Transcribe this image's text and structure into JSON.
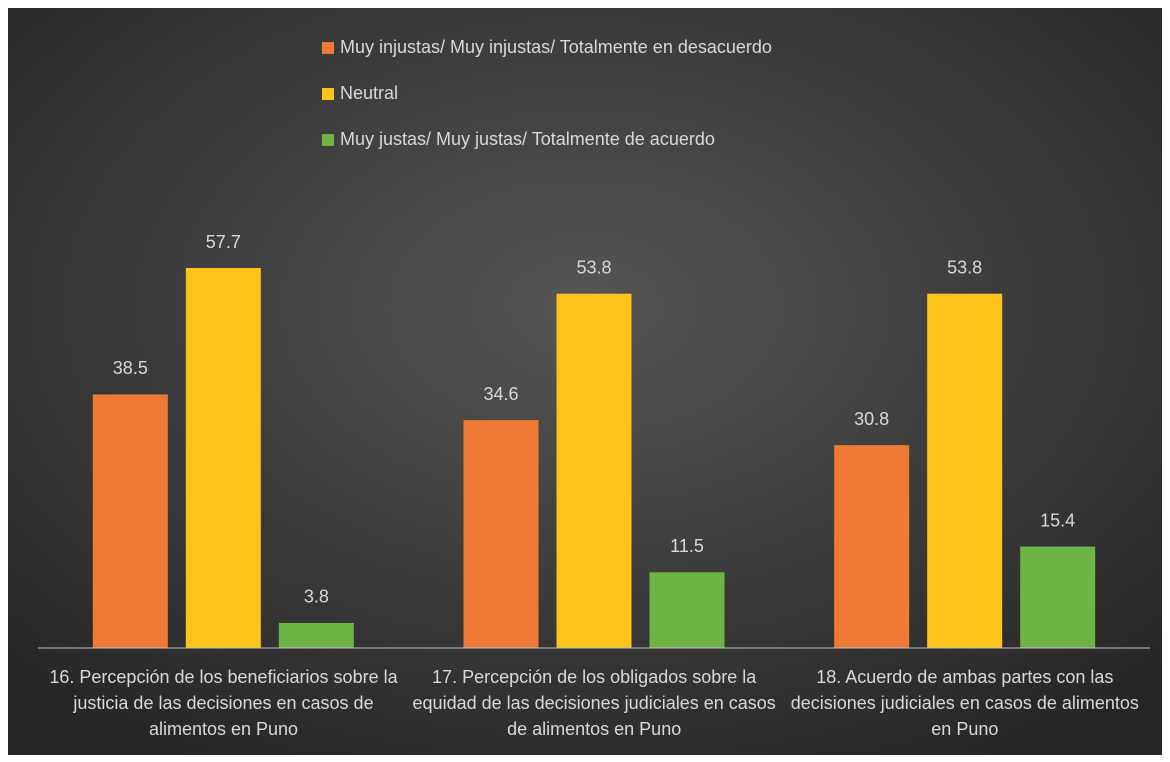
{
  "chart_data": {
    "type": "bar",
    "categories": [
      "16. Percepción de los beneficiarios sobre la justicia de las decisiones en casos de alimentos en Puno",
      "17. Percepción de los obligados sobre la equidad de las decisiones judiciales en casos de alimentos en Puno",
      "18. Acuerdo de ambas partes con las decisiones judiciales en casos de alimentos en Puno"
    ],
    "series": [
      {
        "name": "Muy injustas/ Muy injustas/ Totalmente en desacuerdo",
        "color": "#ee7a35",
        "values": [
          38.5,
          34.6,
          30.8
        ]
      },
      {
        "name": "Neutral",
        "color": "#fcc31a",
        "values": [
          57.7,
          53.8,
          53.8
        ]
      },
      {
        "name": "Muy justas/ Muy justas/ Totalmente de acuerdo",
        "color": "#6db445",
        "values": [
          3.8,
          11.5,
          15.4
        ]
      }
    ],
    "ylim": [
      0,
      70
    ],
    "legend": "top",
    "grid": false
  }
}
